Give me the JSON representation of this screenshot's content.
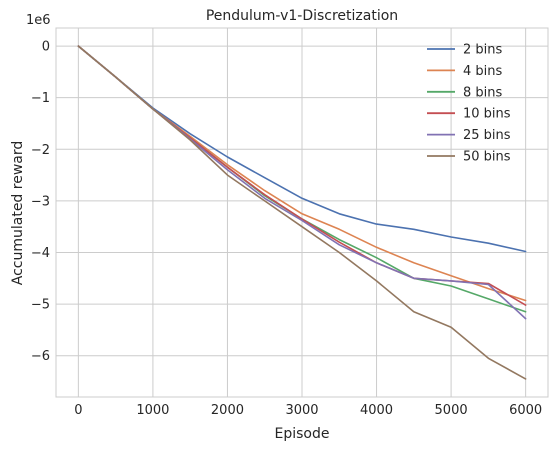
{
  "chart_data": {
    "type": "line",
    "title": "Pendulum-v1-Discretization",
    "xlabel": "Episode",
    "ylabel": "Accumulated reward",
    "y_offset_label": "1e6",
    "xlim": [
      -300,
      6300
    ],
    "ylim": [
      -6.8,
      0.35
    ],
    "x_ticks": [
      0,
      1000,
      2000,
      3000,
      4000,
      5000,
      6000
    ],
    "x_tick_labels": [
      "0",
      "1000",
      "2000",
      "3000",
      "4000",
      "5000",
      "6000"
    ],
    "y_ticks": [
      0,
      -1,
      -2,
      -3,
      -4,
      -5,
      -6
    ],
    "y_tick_labels": [
      "0",
      "−1",
      "−2",
      "−3",
      "−4",
      "−5",
      "−6"
    ],
    "y_units": "x 1e6",
    "grid": true,
    "legend_position": "top-right",
    "x": [
      0,
      500,
      1000,
      1500,
      2000,
      2500,
      3000,
      3500,
      4000,
      4500,
      5000,
      5500,
      6000
    ],
    "series": [
      {
        "name": "2 bins",
        "color": "#4c72b0",
        "values": [
          0,
          -0.6,
          -1.2,
          -1.7,
          -2.15,
          -2.55,
          -2.95,
          -3.25,
          -3.45,
          -3.55,
          -3.7,
          -3.82,
          -3.98
        ]
      },
      {
        "name": "4 bins",
        "color": "#dd8452",
        "values": [
          0,
          -0.6,
          -1.22,
          -1.75,
          -2.3,
          -2.8,
          -3.25,
          -3.55,
          -3.9,
          -4.2,
          -4.45,
          -4.7,
          -4.93
        ]
      },
      {
        "name": "8 bins",
        "color": "#55a868",
        "values": [
          0,
          -0.6,
          -1.22,
          -1.78,
          -2.35,
          -2.9,
          -3.35,
          -3.75,
          -4.1,
          -4.5,
          -4.65,
          -4.9,
          -5.15
        ]
      },
      {
        "name": "10 bins",
        "color": "#c44e52",
        "values": [
          0,
          -0.6,
          -1.22,
          -1.78,
          -2.35,
          -2.88,
          -3.35,
          -3.8,
          -4.2,
          -4.5,
          -4.55,
          -4.6,
          -5.02
        ]
      },
      {
        "name": "25 bins",
        "color": "#8172b3",
        "values": [
          0,
          -0.6,
          -1.22,
          -1.8,
          -2.4,
          -2.95,
          -3.38,
          -3.85,
          -4.2,
          -4.5,
          -4.55,
          -4.62,
          -5.28
        ]
      },
      {
        "name": "50 bins",
        "color": "#937860",
        "values": [
          0,
          -0.6,
          -1.22,
          -1.82,
          -2.5,
          -3.0,
          -3.5,
          -4.0,
          -4.55,
          -5.15,
          -5.45,
          -6.05,
          -6.45
        ]
      }
    ]
  }
}
